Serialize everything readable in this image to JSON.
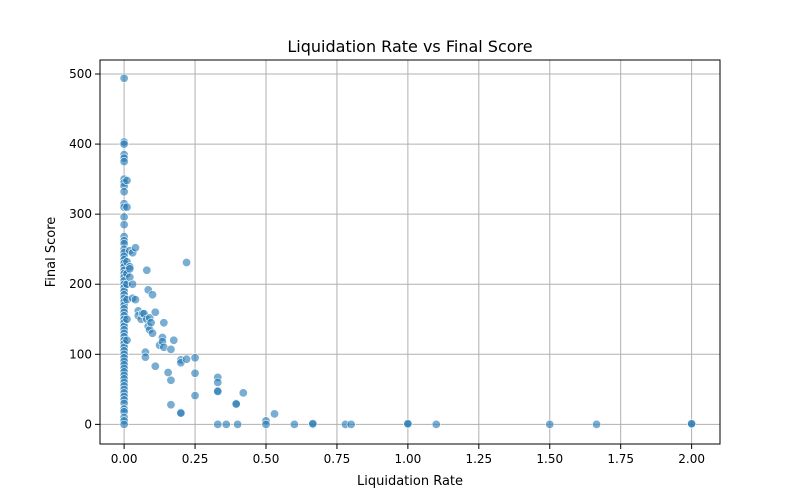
{
  "chart_data": {
    "type": "scatter",
    "title": "Liquidation Rate vs Final Score",
    "xlabel": "Liquidation Rate",
    "ylabel": "Final Score",
    "xlim": [
      -0.085,
      2.1
    ],
    "ylim": [
      -28,
      520
    ],
    "xticks": [
      "0.00",
      "0.25",
      "0.50",
      "0.75",
      "1.00",
      "1.25",
      "1.50",
      "1.75",
      "2.00"
    ],
    "xtick_values": [
      0,
      0.25,
      0.5,
      0.75,
      1.0,
      1.25,
      1.5,
      1.75,
      2.0
    ],
    "yticks": [
      "0",
      "100",
      "200",
      "300",
      "400",
      "500"
    ],
    "ytick_values": [
      0,
      100,
      200,
      300,
      400,
      500
    ],
    "grid": true,
    "point_color": "#1f77b4",
    "points": [
      [
        0,
        494
      ],
      [
        0,
        403
      ],
      [
        0,
        400
      ],
      [
        0,
        385
      ],
      [
        0,
        380
      ],
      [
        0,
        375
      ],
      [
        0,
        350
      ],
      [
        0,
        345
      ],
      [
        0,
        340
      ],
      [
        0,
        332
      ],
      [
        0,
        315
      ],
      [
        0,
        310
      ],
      [
        0,
        296
      ],
      [
        0,
        285
      ],
      [
        0,
        268
      ],
      [
        0,
        262
      ],
      [
        0,
        258
      ],
      [
        0,
        250
      ],
      [
        0,
        245
      ],
      [
        0,
        240
      ],
      [
        0,
        235
      ],
      [
        0,
        230
      ],
      [
        0,
        225
      ],
      [
        0,
        220
      ],
      [
        0,
        215
      ],
      [
        0,
        210
      ],
      [
        0,
        205
      ],
      [
        0,
        200
      ],
      [
        0,
        195
      ],
      [
        0,
        190
      ],
      [
        0,
        185
      ],
      [
        0,
        180
      ],
      [
        0,
        175
      ],
      [
        0,
        170
      ],
      [
        0,
        165
      ],
      [
        0,
        160
      ],
      [
        0,
        155
      ],
      [
        0,
        150
      ],
      [
        0,
        145
      ],
      [
        0,
        140
      ],
      [
        0,
        135
      ],
      [
        0,
        130
      ],
      [
        0,
        125
      ],
      [
        0,
        120
      ],
      [
        0,
        115
      ],
      [
        0,
        110
      ],
      [
        0,
        105
      ],
      [
        0,
        100
      ],
      [
        0,
        95
      ],
      [
        0,
        90
      ],
      [
        0,
        85
      ],
      [
        0,
        80
      ],
      [
        0,
        75
      ],
      [
        0,
        70
      ],
      [
        0,
        65
      ],
      [
        0,
        60
      ],
      [
        0,
        55
      ],
      [
        0,
        50
      ],
      [
        0,
        45
      ],
      [
        0,
        40
      ],
      [
        0,
        35
      ],
      [
        0,
        30
      ],
      [
        0,
        22
      ],
      [
        0,
        18
      ],
      [
        0,
        10
      ],
      [
        0,
        5
      ],
      [
        0,
        0
      ],
      [
        0.01,
        348
      ],
      [
        0.01,
        310
      ],
      [
        0.01,
        232
      ],
      [
        0.01,
        215
      ],
      [
        0.01,
        200
      ],
      [
        0.01,
        178
      ],
      [
        0.01,
        150
      ],
      [
        0.01,
        120
      ],
      [
        0.02,
        248
      ],
      [
        0.02,
        225
      ],
      [
        0.02,
        222
      ],
      [
        0.02,
        210
      ],
      [
        0.03,
        245
      ],
      [
        0.03,
        200
      ],
      [
        0.03,
        180
      ],
      [
        0.04,
        252
      ],
      [
        0.04,
        178
      ],
      [
        0.05,
        162
      ],
      [
        0.05,
        155
      ],
      [
        0.06,
        150
      ],
      [
        0.065,
        158
      ],
      [
        0.07,
        158
      ],
      [
        0.075,
        103
      ],
      [
        0.075,
        96
      ],
      [
        0.08,
        220
      ],
      [
        0.08,
        150
      ],
      [
        0.085,
        192
      ],
      [
        0.085,
        140
      ],
      [
        0.09,
        152
      ],
      [
        0.09,
        135
      ],
      [
        0.095,
        145
      ],
      [
        0.1,
        185
      ],
      [
        0.1,
        130
      ],
      [
        0.11,
        160
      ],
      [
        0.11,
        83
      ],
      [
        0.125,
        113
      ],
      [
        0.135,
        124
      ],
      [
        0.135,
        118
      ],
      [
        0.14,
        145
      ],
      [
        0.14,
        110
      ],
      [
        0.155,
        74
      ],
      [
        0.165,
        107
      ],
      [
        0.165,
        63
      ],
      [
        0.165,
        28
      ],
      [
        0.175,
        120
      ],
      [
        0.2,
        92
      ],
      [
        0.2,
        88
      ],
      [
        0.2,
        17
      ],
      [
        0.2,
        16
      ],
      [
        0.22,
        231
      ],
      [
        0.22,
        93
      ],
      [
        0.25,
        95
      ],
      [
        0.25,
        73
      ],
      [
        0.25,
        41
      ],
      [
        0.33,
        67
      ],
      [
        0.33,
        60
      ],
      [
        0.33,
        48
      ],
      [
        0.33,
        47
      ],
      [
        0.33,
        0
      ],
      [
        0.36,
        0
      ],
      [
        0.395,
        30
      ],
      [
        0.395,
        29
      ],
      [
        0.4,
        0
      ],
      [
        0.42,
        45
      ],
      [
        0.5,
        5
      ],
      [
        0.5,
        0
      ],
      [
        0.53,
        15
      ],
      [
        0.6,
        0
      ],
      [
        0.665,
        0
      ],
      [
        0.665,
        1
      ],
      [
        0.78,
        0
      ],
      [
        0.8,
        0
      ],
      [
        1.0,
        0
      ],
      [
        1.0,
        1
      ],
      [
        1.1,
        0
      ],
      [
        1.5,
        0
      ],
      [
        1.665,
        0
      ],
      [
        2.0,
        0
      ],
      [
        2.0,
        1
      ]
    ]
  }
}
